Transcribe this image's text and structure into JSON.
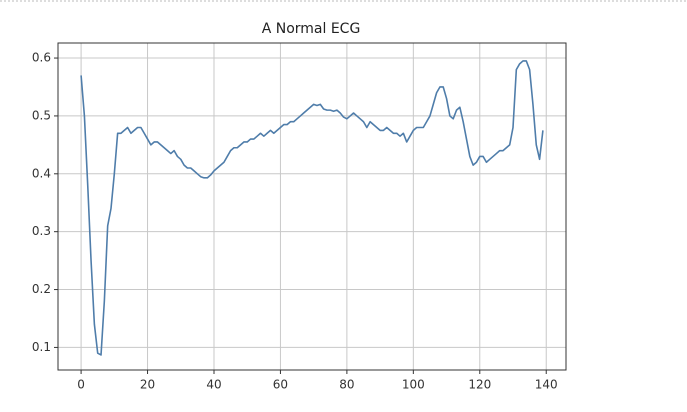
{
  "chart_data": {
    "type": "line",
    "title": "A Normal ECG",
    "x": [
      0,
      1,
      2,
      3,
      4,
      5,
      6,
      7,
      8,
      9,
      10,
      11,
      12,
      13,
      14,
      15,
      16,
      17,
      18,
      19,
      20,
      21,
      22,
      23,
      24,
      25,
      26,
      27,
      28,
      29,
      30,
      31,
      32,
      33,
      34,
      35,
      36,
      37,
      38,
      39,
      40,
      41,
      42,
      43,
      44,
      45,
      46,
      47,
      48,
      49,
      50,
      51,
      52,
      53,
      54,
      55,
      56,
      57,
      58,
      59,
      60,
      61,
      62,
      63,
      64,
      65,
      66,
      67,
      68,
      69,
      70,
      71,
      72,
      73,
      74,
      75,
      76,
      77,
      78,
      79,
      80,
      81,
      82,
      83,
      84,
      85,
      86,
      87,
      88,
      89,
      90,
      91,
      92,
      93,
      94,
      95,
      96,
      97,
      98,
      99,
      100,
      101,
      102,
      103,
      104,
      105,
      106,
      107,
      108,
      109,
      110,
      111,
      112,
      113,
      114,
      115,
      116,
      117,
      118,
      119,
      120,
      121,
      122,
      123,
      124,
      125,
      126,
      127,
      128,
      129,
      130,
      131,
      132,
      133,
      134,
      135,
      136,
      137,
      138,
      139
    ],
    "series": [
      {
        "color": "#4f7daa",
        "values": [
          0.57,
          0.5,
          0.38,
          0.25,
          0.14,
          0.09,
          0.087,
          0.18,
          0.31,
          0.34,
          0.4,
          0.47,
          0.47,
          0.475,
          0.48,
          0.47,
          0.475,
          0.48,
          0.48,
          0.47,
          0.46,
          0.45,
          0.455,
          0.455,
          0.45,
          0.445,
          0.44,
          0.435,
          0.44,
          0.43,
          0.425,
          0.415,
          0.41,
          0.41,
          0.405,
          0.4,
          0.395,
          0.393,
          0.393,
          0.398,
          0.405,
          0.41,
          0.415,
          0.42,
          0.43,
          0.44,
          0.445,
          0.445,
          0.45,
          0.455,
          0.455,
          0.46,
          0.46,
          0.465,
          0.47,
          0.465,
          0.47,
          0.475,
          0.47,
          0.475,
          0.48,
          0.485,
          0.485,
          0.49,
          0.49,
          0.495,
          0.5,
          0.505,
          0.51,
          0.515,
          0.52,
          0.518,
          0.52,
          0.512,
          0.51,
          0.51,
          0.508,
          0.51,
          0.505,
          0.498,
          0.495,
          0.5,
          0.505,
          0.5,
          0.495,
          0.49,
          0.48,
          0.49,
          0.485,
          0.48,
          0.475,
          0.475,
          0.48,
          0.475,
          0.47,
          0.47,
          0.465,
          0.47,
          0.455,
          0.465,
          0.475,
          0.48,
          0.48,
          0.48,
          0.49,
          0.5,
          0.52,
          0.54,
          0.55,
          0.55,
          0.53,
          0.5,
          0.495,
          0.51,
          0.515,
          0.49,
          0.46,
          0.43,
          0.415,
          0.42,
          0.43,
          0.43,
          0.42,
          0.425,
          0.43,
          0.435,
          0.44,
          0.44,
          0.445,
          0.45,
          0.48,
          0.58,
          0.59,
          0.595,
          0.595,
          0.58,
          0.52,
          0.45,
          0.425,
          0.475
        ]
      }
    ],
    "xlim": [
      -6.95,
      145.95
    ],
    "xticks": [
      0,
      20,
      40,
      60,
      80,
      100,
      120,
      140
    ],
    "ylim": [
      0.061,
      0.626
    ],
    "yticks": [
      0.1,
      0.2,
      0.3,
      0.4,
      0.5,
      0.6
    ],
    "grid": true
  }
}
